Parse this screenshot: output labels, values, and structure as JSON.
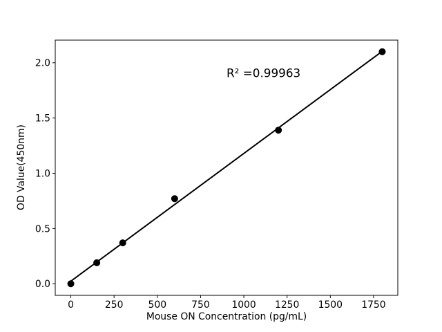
{
  "chart_data": {
    "type": "scatter",
    "title": "",
    "xlabel": "Mouse ON Concentration (pg/mL)",
    "ylabel": "OD Value(450nm)",
    "series": [
      {
        "name": "standard-points",
        "x": [
          0,
          150,
          300,
          600,
          1200,
          1800
        ],
        "y": [
          0.0,
          0.19,
          0.37,
          0.77,
          1.39,
          2.1
        ],
        "marker": "circle",
        "marker_color": "#000000"
      }
    ],
    "trendline": {
      "x": [
        0,
        1800
      ],
      "y": [
        0.023,
        2.104
      ],
      "color": "#000000"
    },
    "annotation": {
      "text": "R² =0.99963",
      "x": 900,
      "y": 1.87
    },
    "xlim": [
      -90,
      1890
    ],
    "ylim": [
      -0.105,
      2.205
    ],
    "xticks": {
      "values": [
        0,
        250,
        500,
        750,
        1000,
        1250,
        1500,
        1750
      ],
      "labels": [
        "0",
        "250",
        "500",
        "750",
        "1000",
        "1250",
        "1500",
        "1750"
      ]
    },
    "yticks": {
      "values": [
        0.0,
        0.5,
        1.0,
        1.5,
        2.0
      ],
      "labels": [
        "0.0",
        "0.5",
        "1.0",
        "1.5",
        "2.0"
      ]
    },
    "grid": false,
    "legend": "none",
    "frame_color": "#000000",
    "background": "#ffffff"
  }
}
